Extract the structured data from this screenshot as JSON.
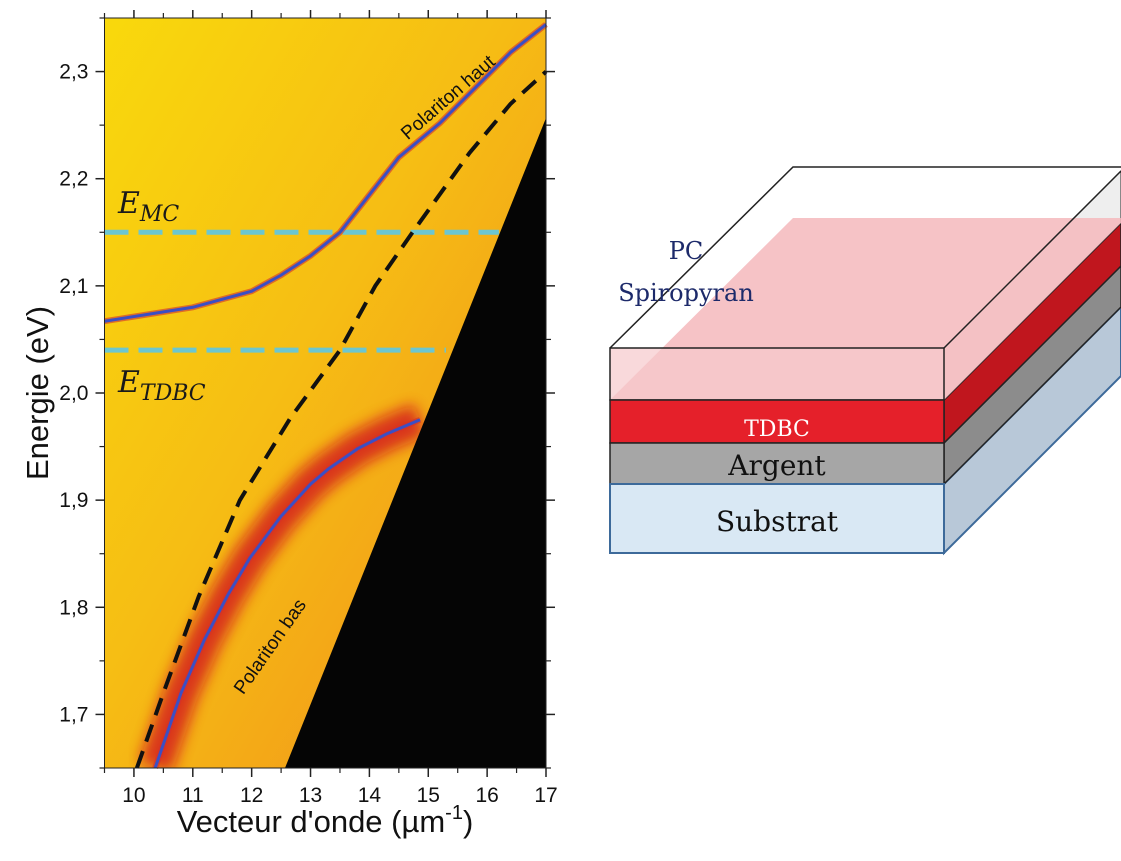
{
  "chart_data": {
    "type": "line",
    "xlabel": {
      "text": "Vecteur d'onde (µm",
      "superscript": "-1",
      "suffix": ")"
    },
    "ylabel": "Energie (eV)",
    "xlim": [
      9.5,
      17
    ],
    "ylim": [
      1.65,
      2.35
    ],
    "xticks": [
      10,
      11,
      12,
      13,
      14,
      15,
      16,
      17
    ],
    "xminorticks": [
      9.5,
      10.5,
      11.5,
      12.5,
      13.5,
      14.5,
      15.5,
      16.5
    ],
    "yticks": [
      {
        "value": 1.7,
        "label": "1,7"
      },
      {
        "value": 1.8,
        "label": "1,8"
      },
      {
        "value": 1.9,
        "label": "1,9"
      },
      {
        "value": 2.0,
        "label": "2,0"
      },
      {
        "value": 2.1,
        "label": "2,1"
      },
      {
        "value": 2.2,
        "label": "2,2"
      },
      {
        "value": 2.3,
        "label": "2,3"
      }
    ],
    "yminorticks": [
      1.65,
      1.75,
      1.85,
      1.95,
      2.05,
      2.15,
      2.25,
      2.35
    ],
    "series": [
      {
        "name": "Polariton haut",
        "color": "#3b4fc4",
        "dash": false,
        "x": [
          9.5,
          11,
          12,
          12.5,
          13,
          13.5,
          14,
          14.5,
          15.2,
          15.8,
          16.4,
          17
        ],
        "y": [
          2.067,
          2.08,
          2.095,
          2.11,
          2.128,
          2.15,
          2.185,
          2.22,
          2.252,
          2.285,
          2.318,
          2.344
        ]
      },
      {
        "name": "Polariton bas",
        "color": "#3b4fc4",
        "dash": false,
        "x": [
          10.36,
          10.8,
          11.2,
          11.6,
          11.97,
          12.5,
          13,
          13.3,
          13.8,
          14.3,
          14.86
        ],
        "y": [
          1.65,
          1.72,
          1.77,
          1.812,
          1.846,
          1.885,
          1.915,
          1.929,
          1.948,
          1.962,
          1.975
        ]
      },
      {
        "color": "#111111",
        "dash": true,
        "x": [
          10.05,
          10.5,
          11.1,
          11.8,
          12.65,
          13.5,
          14.1,
          14.72,
          15.7,
          16.4,
          17
        ],
        "y": [
          1.65,
          1.72,
          1.81,
          1.9,
          1.976,
          2.04,
          2.1,
          2.149,
          2.224,
          2.27,
          2.3
        ]
      }
    ],
    "reference_lines": [
      {
        "symbol": "E",
        "subscript": "MC",
        "value": 2.15,
        "xrange": [
          9.5,
          16.2
        ],
        "color": "#6cc6d0"
      },
      {
        "symbol": "E",
        "subscript": "TDBC",
        "value": 2.04,
        "xrange": [
          9.5,
          15.3
        ],
        "color": "#6cc6d0"
      }
    ]
  },
  "diagram": {
    "layers": [
      "PC",
      "Spiropyran",
      "TDBC",
      "Argent",
      "Substrat"
    ]
  }
}
